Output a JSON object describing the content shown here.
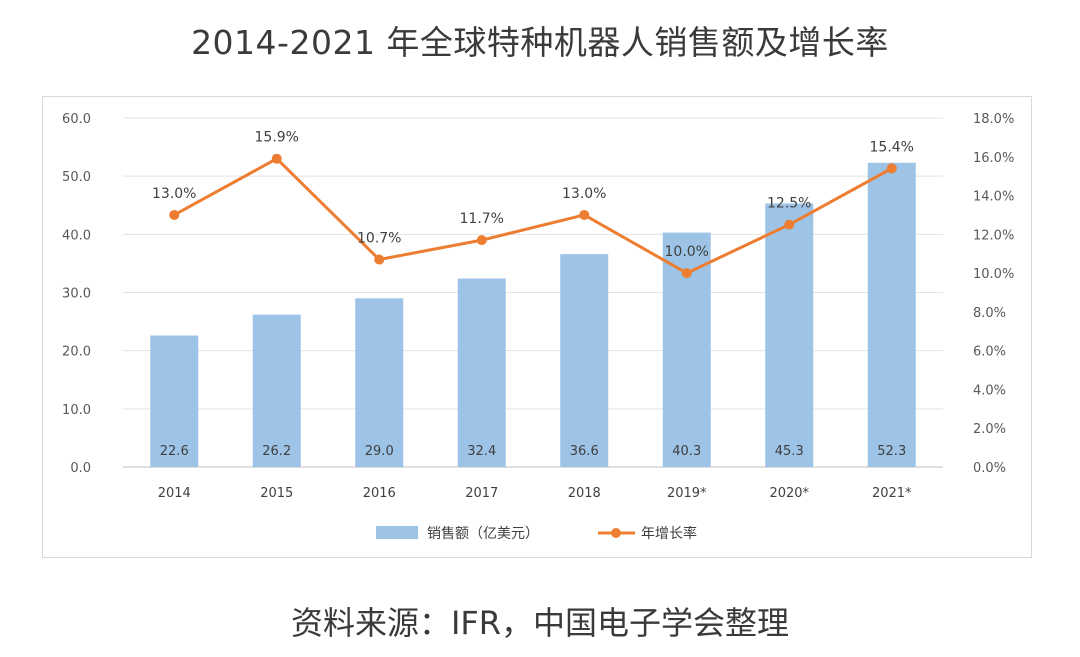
{
  "title": "2014-2021 年全球特种机器人销售额及增长率",
  "source": "资料来源：IFR，中国电子学会整理",
  "chart_data": {
    "type": "bar",
    "categories": [
      "2014",
      "2015",
      "2016",
      "2017",
      "2018",
      "2019*",
      "2020*",
      "2021*"
    ],
    "series": [
      {
        "name": "销售额（亿美元）",
        "type": "bar",
        "axis": "left",
        "color": "#9dc3e6",
        "values": [
          22.6,
          26.2,
          29.0,
          32.4,
          36.6,
          40.3,
          45.3,
          52.3
        ],
        "labels": [
          "22.6",
          "26.2",
          "29.0",
          "32.4",
          "36.6",
          "40.3",
          "45.3",
          "52.3"
        ]
      },
      {
        "name": "年增长率",
        "type": "line",
        "axis": "right",
        "color": "#ed7d31",
        "values": [
          13.0,
          15.9,
          10.7,
          11.7,
          13.0,
          10.0,
          12.5,
          15.4
        ],
        "labels": [
          "13.0%",
          "15.9%",
          "10.7%",
          "11.7%",
          "13.0%",
          "10.0%",
          "12.5%",
          "15.4%"
        ]
      }
    ],
    "y_left": {
      "min": 0,
      "max": 60,
      "step": 10,
      "ticks": [
        "0.0",
        "10.0",
        "20.0",
        "30.0",
        "40.0",
        "50.0",
        "60.0"
      ]
    },
    "y_right": {
      "min": 0,
      "max": 18,
      "step": 2,
      "ticks": [
        "0.0%",
        "2.0%",
        "4.0%",
        "6.0%",
        "8.0%",
        "10.0%",
        "12.0%",
        "14.0%",
        "16.0%",
        "18.0%"
      ]
    },
    "grid": true,
    "legend": "bottom-center"
  }
}
